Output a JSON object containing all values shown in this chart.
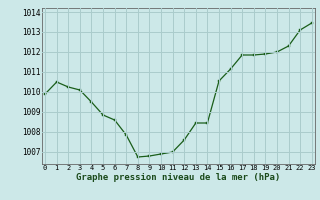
{
  "x": [
    0,
    1,
    2,
    3,
    4,
    5,
    6,
    7,
    8,
    9,
    10,
    11,
    12,
    13,
    14,
    15,
    16,
    17,
    18,
    19,
    20,
    21,
    22,
    23
  ],
  "y": [
    1009.9,
    1010.5,
    1010.25,
    1010.1,
    1009.5,
    1008.85,
    1008.6,
    1007.85,
    1006.75,
    1006.8,
    1006.9,
    1007.0,
    1007.6,
    1008.45,
    1008.45,
    1010.55,
    1011.15,
    1011.85,
    1011.85,
    1011.9,
    1012.0,
    1012.3,
    1013.1,
    1013.45
  ],
  "line_color": "#1a5e1a",
  "marker_color": "#1a5e1a",
  "bg_color": "#cce8e8",
  "grid_color": "#aacccc",
  "xlabel": "Graphe pression niveau de la mer (hPa)",
  "ylim": [
    1006.4,
    1014.2
  ],
  "yticks": [
    1007,
    1008,
    1009,
    1010,
    1011,
    1012,
    1013,
    1014
  ],
  "xticks": [
    0,
    1,
    2,
    3,
    4,
    5,
    6,
    7,
    8,
    9,
    10,
    11,
    12,
    13,
    14,
    15,
    16,
    17,
    18,
    19,
    20,
    21,
    22,
    23
  ],
  "xlim": [
    -0.3,
    23.3
  ]
}
